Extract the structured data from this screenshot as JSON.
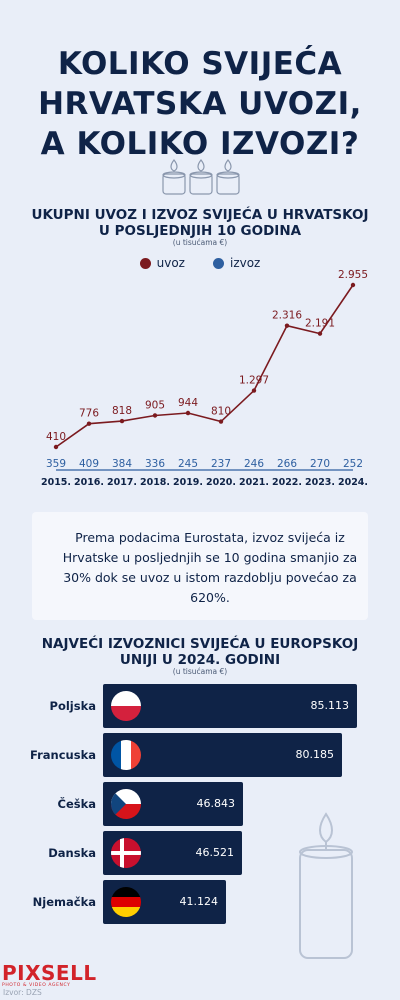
{
  "title_lines": [
    "KOLIKO SVIJEĆA",
    "HRVATSKA UVOZI,",
    "A KOLIKO IZVOZI?"
  ],
  "line_section": {
    "title_lines": [
      "UKUPNI UVOZ I IZVOZ SVIJEĆA U HRVATSKOJ",
      "U POSLJEDNJIH 10 GODINA"
    ],
    "unit": "(u tisućama €)"
  },
  "note": "Prema podacima Eurostata, izvoz svijeća iz Hrvatske u posljednjih se 10 godina smanjio za 30% dok se uvoz u istom razdoblju povećao za 620%.",
  "bar_section": {
    "title_lines": [
      "NAJVEĆI IZVOZNICI SVIJEĆA U EUROPSKOJ",
      "UNIJI U 2024. GODINI"
    ],
    "unit": "(u tisućama €)"
  },
  "logo": {
    "name": "PIXSELL",
    "sub": "PHOTO & VIDEO AGENCY"
  },
  "source": "Izvor: DZS",
  "colors": {
    "uvoz": "#7b1a1f",
    "izvoz": "#2e5fa0",
    "navy": "#0f2347"
  },
  "chart_data": [
    {
      "type": "line",
      "x": [
        "2015.",
        "2016.",
        "2017.",
        "2018.",
        "2019.",
        "2020.",
        "2021.",
        "2022.",
        "2023.",
        "2024."
      ],
      "series": [
        {
          "name": "uvoz",
          "values": [
            410,
            776,
            818,
            905,
            944,
            810,
            1297,
            2316,
            2191,
            2955
          ],
          "labels": [
            "410",
            "776",
            "818",
            "905",
            "944",
            "810",
            "1.297",
            "2.316",
            "2.191",
            "2.955"
          ]
        },
        {
          "name": "izvoz",
          "values": [
            359,
            409,
            384,
            336,
            245,
            237,
            246,
            266,
            270,
            252
          ],
          "labels": [
            "359",
            "409",
            "384",
            "336",
            "245",
            "237",
            "246",
            "266",
            "270",
            "252"
          ]
        }
      ],
      "legend": "top-center",
      "grid": false
    },
    {
      "type": "bar",
      "orientation": "horizontal",
      "categories": [
        "Poljska",
        "Francuska",
        "Češka",
        "Danska",
        "Njemačka"
      ],
      "values": [
        85113,
        80185,
        46843,
        46521,
        41124
      ],
      "labels": [
        "85.113",
        "80.185",
        "46.843",
        "46.521",
        "41.124"
      ],
      "flags": [
        "poland-flag-icon",
        "france-flag-icon",
        "czechia-flag-icon",
        "denmark-flag-icon",
        "germany-flag-icon"
      ]
    }
  ]
}
